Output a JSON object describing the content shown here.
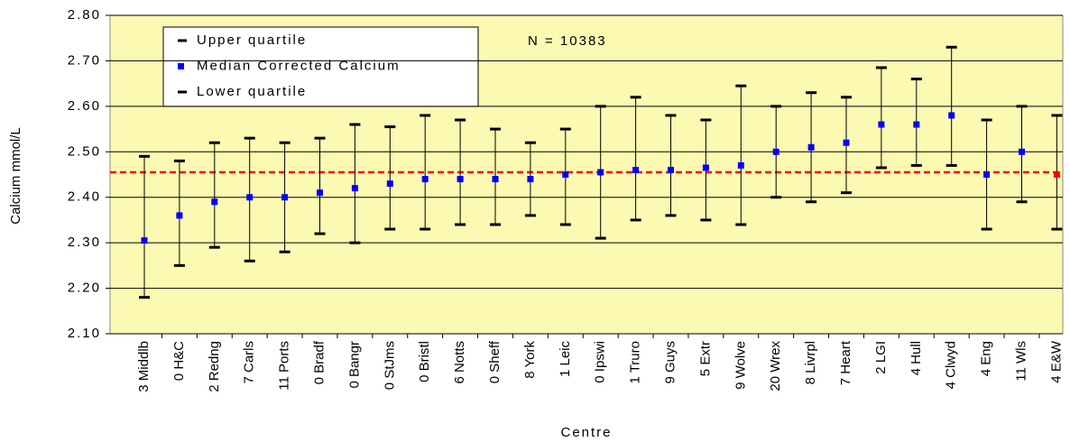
{
  "chart_data": {
    "type": "errorbar",
    "y_label": "Calcium mmol/L",
    "x_label": "Centre",
    "annotation": "N = 10383",
    "categories": [
      "3 Middlb",
      "0 H&C",
      "2 Redng",
      "7 Carls",
      "11 Ports",
      "0 Bradf",
      "0 Bangr",
      "0 StJms",
      "0 Bristl",
      "6 Notts",
      "0 Sheff",
      "8 York",
      "1 Leic",
      "0 Ipswi",
      "1 Truro",
      "9 Guys",
      "5 Extr",
      "9 Wolve",
      "20 Wrex",
      "8 Livrpl",
      "7 Heart",
      "2 LGI",
      "4 Hull",
      "4 Clwyd",
      "4 Eng",
      "11 Wls",
      "4 E&W"
    ],
    "series": [
      {
        "name": "Upper quartile",
        "color": "#000000",
        "values": [
          2.49,
          2.48,
          2.52,
          2.53,
          2.52,
          2.53,
          2.56,
          2.555,
          2.58,
          2.57,
          2.55,
          2.52,
          2.55,
          2.6,
          2.62,
          2.58,
          2.57,
          2.645,
          2.6,
          2.63,
          2.62,
          2.685,
          2.66,
          2.73,
          2.57,
          2.6,
          2.58
        ]
      },
      {
        "name": "Median Corrected Calcium",
        "color": "#0000ff",
        "values": [
          2.305,
          2.36,
          2.39,
          2.4,
          2.4,
          2.41,
          2.42,
          2.43,
          2.44,
          2.44,
          2.44,
          2.44,
          2.45,
          2.455,
          2.46,
          2.46,
          2.465,
          2.47,
          2.5,
          2.51,
          2.52,
          2.56,
          2.56,
          2.58,
          2.45,
          2.5,
          2.45
        ]
      },
      {
        "name": "Lower quartile",
        "color": "#000000",
        "values": [
          2.18,
          2.25,
          2.29,
          2.26,
          2.28,
          2.32,
          2.3,
          2.33,
          2.33,
          2.34,
          2.34,
          2.36,
          2.34,
          2.31,
          2.35,
          2.36,
          2.35,
          2.34,
          2.4,
          2.39,
          2.41,
          2.465,
          2.47,
          2.47,
          2.33,
          2.39,
          2.33
        ]
      }
    ],
    "highlight_category": "4 E&W",
    "highlight_color": "#ff0000",
    "reference_line": 2.455,
    "reference_color": "#ff0000",
    "ylim": [
      2.1,
      2.8
    ],
    "yticks": [
      {
        "value": 2.1,
        "label": "2.10"
      },
      {
        "value": 2.2,
        "label": "2.20"
      },
      {
        "value": 2.3,
        "label": "2.30"
      },
      {
        "value": 2.4,
        "label": "2.40"
      },
      {
        "value": 2.5,
        "label": "2.50"
      },
      {
        "value": 2.6,
        "label": "2.60"
      },
      {
        "value": 2.7,
        "label": "2.70"
      },
      {
        "value": 2.8,
        "label": "2.80"
      }
    ],
    "grid": true
  }
}
